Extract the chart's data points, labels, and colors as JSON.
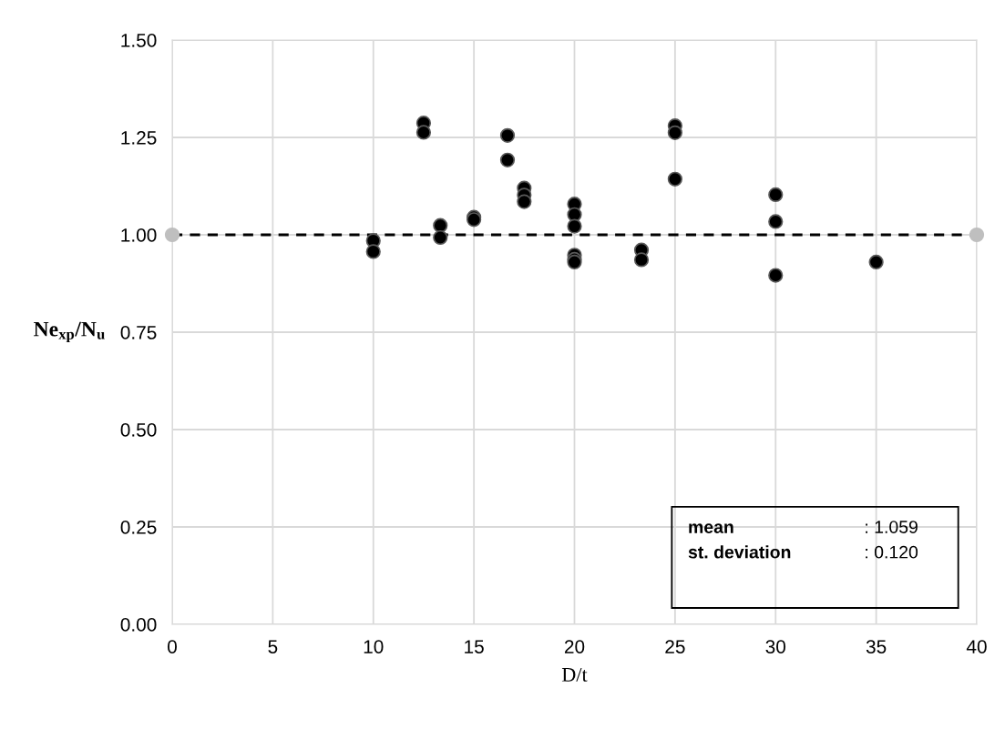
{
  "chart_data": {
    "type": "scatter",
    "xlabel": "D/t",
    "ylabel": "Ne$_{xp}$/N$_{u}$",
    "xlim": [
      0,
      40
    ],
    "xticks": [
      0,
      5,
      10,
      15,
      20,
      25,
      30,
      35,
      40
    ],
    "ylim": [
      0,
      1.5
    ],
    "yticks": [
      {
        "value": 0,
        "label": "0.00"
      },
      {
        "value": 0.25,
        "label": "0.25"
      },
      {
        "value": 0.5,
        "label": "0.50"
      },
      {
        "value": 0.75,
        "label": "0.75"
      },
      {
        "value": 1,
        "label": "1.00"
      },
      {
        "value": 1.25,
        "label": "1.25"
      },
      {
        "value": 1.5,
        "label": "1.50"
      }
    ],
    "grid": true,
    "marker": "circle",
    "series": [
      {
        "color": "#bfbfbf",
        "x": [
          0,
          40
        ],
        "values": [
          1,
          1
        ]
      },
      {
        "color": "#000000",
        "x": [
          10,
          10,
          12.5,
          12.5,
          13.33,
          13.33,
          15,
          15,
          16.67,
          16.67,
          17.5,
          17.5,
          17.5,
          20,
          20,
          20,
          20,
          20,
          20,
          23.33,
          23.33,
          25,
          25,
          25,
          30,
          30,
          30,
          35
        ],
        "values": [
          0.985,
          0.957,
          1.287,
          1.263,
          1.024,
          0.993,
          1.045,
          1.039,
          1.255,
          1.192,
          1.12,
          1.102,
          1.085,
          1.079,
          1.052,
          1.022,
          0.948,
          0.937,
          0.93,
          0.961,
          0.936,
          1.28,
          1.262,
          1.143,
          1.103,
          1.034,
          0.896,
          0.93
        ]
      }
    ],
    "ref_lines": [
      {
        "axis": "y",
        "value": 1,
        "color": "#000000",
        "line_style": "dashed"
      }
    ],
    "annotations": [
      "mean",
      ": 1.059",
      "st. deviation",
      ": 0.120"
    ]
  }
}
